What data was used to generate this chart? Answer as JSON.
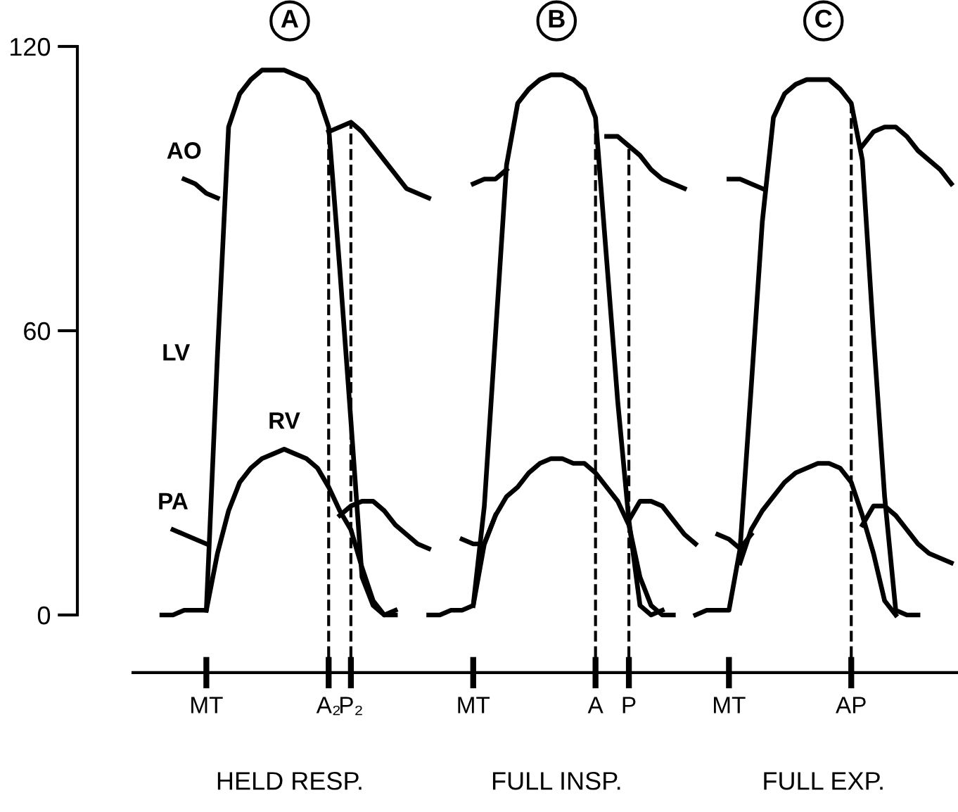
{
  "chart_data": {
    "type": "line",
    "categories": [
      null,
      null,
      null,
      null,
      "MT",
      null,
      null,
      null,
      null,
      null,
      null,
      null,
      null,
      null,
      null,
      "A₂",
      null,
      "P₂",
      null,
      null,
      null,
      null,
      null,
      null,
      null,
      null,
      null,
      null,
      "MT",
      null,
      null,
      null,
      null,
      null,
      null,
      null,
      null,
      null,
      null,
      "A",
      null,
      null,
      "P",
      null,
      null,
      null,
      null,
      null,
      null,
      null,
      null,
      "MT",
      null,
      null,
      null,
      null,
      null,
      null,
      null,
      null,
      null,
      null,
      "AP",
      null,
      null,
      null,
      null,
      null,
      null,
      null,
      null,
      null
    ],
    "series": [
      {
        "name": "AO",
        "color": "#000000",
        "values": [
          null,
          null,
          92,
          91,
          89,
          88,
          null,
          null,
          null,
          null,
          null,
          null,
          null,
          null,
          null,
          102,
          103,
          104,
          102,
          99,
          96,
          93,
          90,
          89,
          88,
          null,
          null,
          null,
          91,
          92,
          92,
          94,
          null,
          null,
          null,
          null,
          null,
          null,
          null,
          null,
          101,
          101,
          99,
          97,
          94,
          92,
          91,
          90,
          null,
          null,
          null,
          92,
          92,
          91,
          90,
          null,
          null,
          null,
          null,
          null,
          null,
          null,
          null,
          99,
          102,
          103,
          103,
          101,
          98,
          96,
          94,
          91
        ]
      },
      {
        "name": "LV",
        "color": "#000000",
        "values": [
          0,
          0,
          1,
          1,
          1,
          55,
          103,
          110,
          113,
          115,
          115,
          115,
          114,
          113,
          110,
          103,
          73,
          41,
          8,
          2,
          0,
          1,
          null,
          null,
          0,
          0,
          1,
          1,
          2,
          23,
          59,
          95,
          108,
          111,
          113,
          114,
          114,
          113,
          111,
          105,
          75,
          45,
          20,
          2,
          0,
          1,
          null,
          null,
          0,
          1,
          1,
          1,
          14,
          48,
          83,
          105,
          110,
          112,
          113,
          113,
          113,
          111,
          108,
          96,
          59,
          25,
          1,
          0,
          0,
          null,
          null,
          null
        ]
      },
      {
        "name": "RV",
        "color": "#000000",
        "values": [
          null,
          null,
          null,
          null,
          1,
          13,
          22,
          28,
          31,
          33,
          34,
          35,
          34,
          33,
          31,
          27,
          22,
          18,
          10,
          3,
          0,
          0,
          null,
          null,
          null,
          null,
          null,
          null,
          2,
          15,
          21,
          25,
          27,
          30,
          32,
          33,
          33,
          32,
          32,
          30,
          27,
          24,
          19,
          8,
          2,
          0,
          0,
          null,
          null,
          null,
          null,
          null,
          11,
          18,
          22,
          25,
          28,
          30,
          31,
          32,
          32,
          31,
          28,
          21,
          13,
          3,
          0,
          null,
          null,
          null,
          null,
          null
        ]
      },
      {
        "name": "PA",
        "color": "#000000",
        "values": [
          null,
          18,
          17,
          16,
          15,
          null,
          null,
          null,
          null,
          null,
          null,
          null,
          null,
          null,
          null,
          null,
          21,
          23,
          24,
          24,
          22,
          19,
          17,
          15,
          14,
          null,
          null,
          16,
          15,
          15,
          21,
          null,
          null,
          null,
          null,
          null,
          null,
          null,
          null,
          null,
          null,
          null,
          20,
          24,
          24,
          23,
          20,
          17,
          15,
          null,
          17,
          16,
          14,
          17,
          null,
          null,
          null,
          null,
          null,
          null,
          null,
          null,
          null,
          19,
          23,
          23,
          21,
          18,
          15,
          13,
          12,
          11
        ]
      }
    ],
    "ylim": [
      0,
      120
    ],
    "yticks": [
      0,
      60,
      120
    ],
    "ref_lines": [
      {
        "axis": "x",
        "value": "A₂",
        "line_style": "dashed"
      },
      {
        "axis": "x",
        "value": "P₂",
        "line_style": "dashed"
      },
      {
        "axis": "x",
        "value": "A",
        "line_style": "dashed"
      },
      {
        "axis": "x",
        "value": "P",
        "line_style": "dashed"
      },
      {
        "axis": "x",
        "value": "AP",
        "line_style": "dashed"
      }
    ],
    "annotations": [
      "A",
      "B",
      "C",
      "HELD RESP.",
      "FULL INSP.",
      "FULL EXP."
    ],
    "line_style": "solid",
    "marker": "none",
    "grid": false,
    "legend": false
  }
}
